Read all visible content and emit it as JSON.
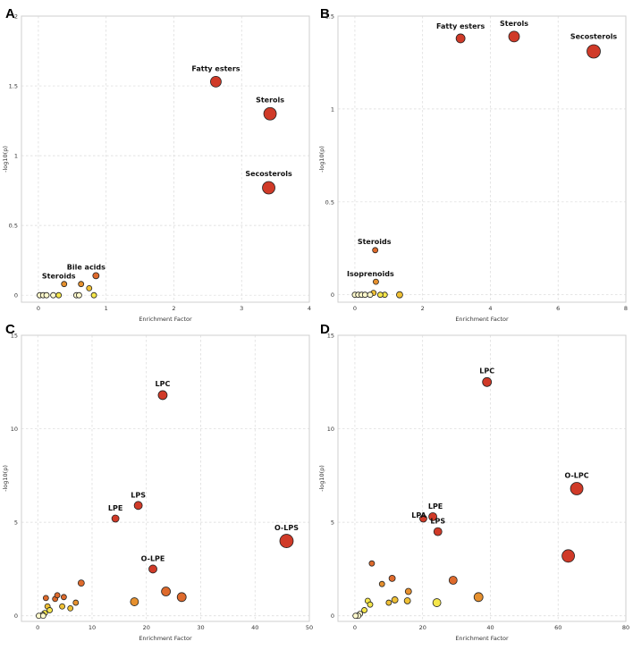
{
  "colors": {
    "c1": "#FFFACD",
    "c2": "#F5E64A",
    "c3": "#EFC035",
    "c4": "#E6902E",
    "c5": "#DE6A2C",
    "c6": "#D03A28"
  },
  "chart_data": [
    {
      "panel": "A",
      "type": "scatter",
      "xlabel": "Enrichment Factor",
      "ylabel": "-log10(p)",
      "xlim": [
        -0.25,
        4
      ],
      "ylim": [
        -0.05,
        2
      ],
      "xticks": [
        0,
        1,
        2,
        3,
        4
      ],
      "yticks": [
        0,
        0.5,
        1,
        1.5,
        2
      ],
      "points": [
        {
          "x": 2.62,
          "y": 1.53,
          "r": 6,
          "color": "c6",
          "label": "Fatty esters"
        },
        {
          "x": 3.42,
          "y": 1.3,
          "r": 7,
          "color": "c6",
          "label": "Sterols"
        },
        {
          "x": 3.4,
          "y": 0.77,
          "r": 7,
          "color": "c6",
          "label": "Secosterols"
        },
        {
          "x": 0.85,
          "y": 0.14,
          "r": 3.5,
          "color": "c5",
          "label": "Bile acids"
        },
        {
          "x": 0.38,
          "y": 0.08,
          "r": 3,
          "color": "c4",
          "label": "Steroids"
        },
        {
          "x": 0.63,
          "y": 0.08,
          "r": 3,
          "color": "c4"
        },
        {
          "x": 0.75,
          "y": 0.05,
          "r": 3,
          "color": "c3"
        },
        {
          "x": 0.82,
          "y": 0.0,
          "r": 3,
          "color": "c2"
        },
        {
          "x": 0.02,
          "y": 0.0,
          "r": 3,
          "color": "c1"
        },
        {
          "x": 0.07,
          "y": 0.0,
          "r": 3,
          "color": "c1"
        },
        {
          "x": 0.12,
          "y": 0.0,
          "r": 3,
          "color": "c1"
        },
        {
          "x": 0.22,
          "y": 0.0,
          "r": 3,
          "color": "c1"
        },
        {
          "x": 0.3,
          "y": 0.0,
          "r": 3,
          "color": "c2"
        },
        {
          "x": 0.56,
          "y": 0.0,
          "r": 3,
          "color": "c1"
        },
        {
          "x": 0.6,
          "y": 0.0,
          "r": 3,
          "color": "c1"
        }
      ]
    },
    {
      "panel": "B",
      "type": "scatter",
      "xlabel": "Enrichment Factor",
      "ylabel": "-log10(p)",
      "xlim": [
        -0.5,
        8
      ],
      "ylim": [
        -0.04,
        1.5
      ],
      "xticks": [
        0,
        2,
        4,
        6,
        8
      ],
      "yticks": [
        0,
        0.5,
        1,
        1.5
      ],
      "points": [
        {
          "x": 3.12,
          "y": 1.38,
          "r": 5,
          "color": "c6",
          "label": "Fatty esters"
        },
        {
          "x": 4.7,
          "y": 1.39,
          "r": 6,
          "color": "c6",
          "label": "Sterols"
        },
        {
          "x": 7.05,
          "y": 1.31,
          "r": 7.5,
          "color": "c6",
          "label": "Secosterols"
        },
        {
          "x": 0.6,
          "y": 0.24,
          "r": 3,
          "color": "c5",
          "label": "Steroids"
        },
        {
          "x": 0.62,
          "y": 0.07,
          "r": 3,
          "color": "c4",
          "label": "Isoprenoids"
        },
        {
          "x": 1.32,
          "y": 0.0,
          "r": 3.5,
          "color": "c3"
        },
        {
          "x": 0.55,
          "y": 0.01,
          "r": 3,
          "color": "c3"
        },
        {
          "x": 0.88,
          "y": 0.0,
          "r": 3,
          "color": "c2"
        },
        {
          "x": 0.0,
          "y": 0.0,
          "r": 3,
          "color": "c1"
        },
        {
          "x": 0.1,
          "y": 0.0,
          "r": 3,
          "color": "c1"
        },
        {
          "x": 0.2,
          "y": 0.0,
          "r": 3,
          "color": "c1"
        },
        {
          "x": 0.3,
          "y": 0.0,
          "r": 3,
          "color": "c1"
        },
        {
          "x": 0.45,
          "y": 0.0,
          "r": 3,
          "color": "c1"
        },
        {
          "x": 0.75,
          "y": 0.0,
          "r": 3,
          "color": "c2"
        }
      ]
    },
    {
      "panel": "C",
      "type": "scatter",
      "xlabel": "Enrichment Factor",
      "ylabel": "-log10(p)",
      "xlim": [
        -3,
        50
      ],
      "ylim": [
        -0.3,
        15
      ],
      "xticks": [
        0,
        10,
        20,
        30,
        40,
        50
      ],
      "yticks": [
        0,
        5,
        10,
        15
      ],
      "points": [
        {
          "x": 23.0,
          "y": 11.8,
          "r": 5,
          "color": "c6",
          "label": "LPC"
        },
        {
          "x": 18.5,
          "y": 5.9,
          "r": 4.5,
          "color": "c6",
          "label": "LPS"
        },
        {
          "x": 14.3,
          "y": 5.2,
          "r": 4,
          "color": "c6",
          "label": "LPE"
        },
        {
          "x": 45.8,
          "y": 4.0,
          "r": 7.5,
          "color": "c6",
          "label": "O-LPS"
        },
        {
          "x": 21.2,
          "y": 2.5,
          "r": 4.5,
          "color": "c6",
          "label": "O-LPE"
        },
        {
          "x": 23.6,
          "y": 1.3,
          "r": 5,
          "color": "c5"
        },
        {
          "x": 26.5,
          "y": 1.0,
          "r": 5,
          "color": "c5"
        },
        {
          "x": 17.8,
          "y": 0.75,
          "r": 4.5,
          "color": "c4"
        },
        {
          "x": 8.0,
          "y": 1.75,
          "r": 3.5,
          "color": "c5"
        },
        {
          "x": 4.8,
          "y": 1.0,
          "r": 3,
          "color": "c5"
        },
        {
          "x": 3.2,
          "y": 0.9,
          "r": 3,
          "color": "c5"
        },
        {
          "x": 3.6,
          "y": 1.1,
          "r": 3,
          "color": "c5"
        },
        {
          "x": 1.5,
          "y": 0.95,
          "r": 3,
          "color": "c5"
        },
        {
          "x": 7.0,
          "y": 0.7,
          "r": 3,
          "color": "c4"
        },
        {
          "x": 4.5,
          "y": 0.5,
          "r": 3,
          "color": "c3"
        },
        {
          "x": 6.0,
          "y": 0.4,
          "r": 3,
          "color": "c3"
        },
        {
          "x": 1.8,
          "y": 0.5,
          "r": 3,
          "color": "c3"
        },
        {
          "x": 2.2,
          "y": 0.3,
          "r": 3,
          "color": "c2"
        },
        {
          "x": 1.3,
          "y": 0.15,
          "r": 3,
          "color": "c2"
        },
        {
          "x": 0.9,
          "y": 0.05,
          "r": 3,
          "color": "c1"
        },
        {
          "x": 0.2,
          "y": 0.0,
          "r": 3,
          "color": "c1"
        },
        {
          "x": 1.0,
          "y": 0.0,
          "r": 3,
          "color": "c1"
        }
      ]
    },
    {
      "panel": "D",
      "type": "scatter",
      "xlabel": "Enrichment Factor",
      "ylabel": "-log10(p)",
      "xlim": [
        -5,
        80
      ],
      "ylim": [
        -0.3,
        15
      ],
      "xticks": [
        0,
        20,
        40,
        60,
        80
      ],
      "yticks": [
        0,
        5,
        10,
        15
      ],
      "points": [
        {
          "x": 39.0,
          "y": 12.5,
          "r": 5,
          "color": "c6",
          "label": "LPC"
        },
        {
          "x": 65.5,
          "y": 6.8,
          "r": 7,
          "color": "c6",
          "label": "O-LPC"
        },
        {
          "x": 23.0,
          "y": 5.3,
          "r": 4.5,
          "color": "c6",
          "label": "LPE"
        },
        {
          "x": 20.2,
          "y": 5.2,
          "r": 4,
          "color": "c6",
          "label": "LPA"
        },
        {
          "x": 24.5,
          "y": 4.5,
          "r": 4.5,
          "color": "c6",
          "label": "LPS"
        },
        {
          "x": 63.0,
          "y": 3.2,
          "r": 7,
          "color": "c6"
        },
        {
          "x": 29.0,
          "y": 1.9,
          "r": 4.5,
          "color": "c5"
        },
        {
          "x": 5.0,
          "y": 2.8,
          "r": 3,
          "color": "c5"
        },
        {
          "x": 11.0,
          "y": 2.0,
          "r": 3.5,
          "color": "c5"
        },
        {
          "x": 8.0,
          "y": 1.7,
          "r": 3,
          "color": "c4"
        },
        {
          "x": 15.8,
          "y": 1.3,
          "r": 3.5,
          "color": "c4"
        },
        {
          "x": 36.5,
          "y": 1.0,
          "r": 5,
          "color": "c4"
        },
        {
          "x": 11.8,
          "y": 0.85,
          "r": 3.5,
          "color": "c3"
        },
        {
          "x": 15.5,
          "y": 0.8,
          "r": 3.5,
          "color": "c3"
        },
        {
          "x": 10.0,
          "y": 0.7,
          "r": 3,
          "color": "c3"
        },
        {
          "x": 24.2,
          "y": 0.7,
          "r": 4.5,
          "color": "c2"
        },
        {
          "x": 3.8,
          "y": 0.8,
          "r": 3,
          "color": "c2"
        },
        {
          "x": 4.5,
          "y": 0.6,
          "r": 3,
          "color": "c2"
        },
        {
          "x": 2.8,
          "y": 0.3,
          "r": 3,
          "color": "c2"
        },
        {
          "x": 1.5,
          "y": 0.1,
          "r": 3,
          "color": "c1"
        },
        {
          "x": 0.5,
          "y": 0.0,
          "r": 3,
          "color": "c1"
        },
        {
          "x": 1.0,
          "y": 0.0,
          "r": 3,
          "color": "c1"
        },
        {
          "x": 0.2,
          "y": 0.0,
          "r": 3,
          "color": "c1"
        }
      ]
    }
  ]
}
